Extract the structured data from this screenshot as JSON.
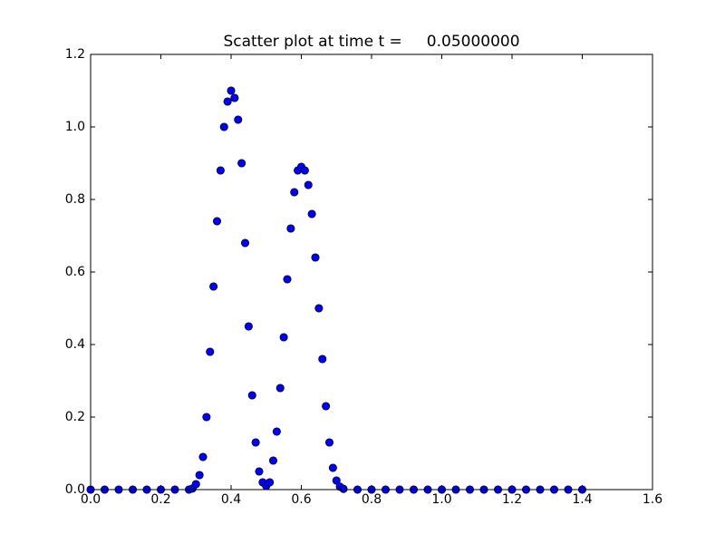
{
  "chart_data": {
    "type": "scatter",
    "title": "Scatter plot at time t =     0.05000000",
    "x": [
      0,
      0.04,
      0.08,
      0.12,
      0.16,
      0.2,
      0.24,
      0.28,
      0.29,
      0.3,
      0.31,
      0.32,
      0.33,
      0.34,
      0.35,
      0.36,
      0.37,
      0.38,
      0.39,
      0.4,
      0.41,
      0.42,
      0.43,
      0.44,
      0.45,
      0.46,
      0.47,
      0.48,
      0.49,
      0.5,
      0.51,
      0.52,
      0.53,
      0.54,
      0.55,
      0.56,
      0.57,
      0.58,
      0.59,
      0.6,
      0.61,
      0.62,
      0.63,
      0.64,
      0.65,
      0.66,
      0.67,
      0.68,
      0.69,
      0.7,
      0.71,
      0.72,
      0.76,
      0.8,
      0.84,
      0.88,
      0.92,
      0.96,
      1.0,
      1.04,
      1.08,
      1.12,
      1.16,
      1.2,
      1.24,
      1.28,
      1.32,
      1.36,
      1.4
    ],
    "values": [
      0,
      0,
      0,
      0,
      0,
      0,
      0,
      0,
      0.003,
      0.015,
      0.04,
      0.09,
      0.2,
      0.38,
      0.56,
      0.74,
      0.88,
      1.0,
      1.07,
      1.1,
      1.08,
      1.02,
      0.9,
      0.68,
      0.45,
      0.26,
      0.13,
      0.05,
      0.02,
      0.01,
      0.02,
      0.08,
      0.16,
      0.28,
      0.42,
      0.58,
      0.72,
      0.82,
      0.88,
      0.89,
      0.88,
      0.84,
      0.76,
      0.64,
      0.5,
      0.36,
      0.23,
      0.13,
      0.06,
      0.025,
      0.008,
      0.002,
      0,
      0,
      0,
      0,
      0,
      0,
      0,
      0,
      0,
      0,
      0,
      0,
      0,
      0,
      0,
      0,
      0
    ],
    "color": "#0000ff",
    "edge_color": "#000000",
    "xlim": [
      0,
      1.6
    ],
    "xticks": [
      {
        "value": 0,
        "label": "0.0"
      },
      0.2,
      0.4,
      0.6,
      0.8,
      {
        "value": 1,
        "label": "1.0"
      },
      1.2,
      1.4,
      1.6
    ],
    "ylim": [
      0,
      1.2
    ],
    "yticks": [
      {
        "value": 0,
        "label": "0.0"
      },
      0.2,
      0.4,
      0.6,
      0.8,
      {
        "value": 1,
        "label": "1.0"
      },
      1.2
    ],
    "grid": false
  }
}
